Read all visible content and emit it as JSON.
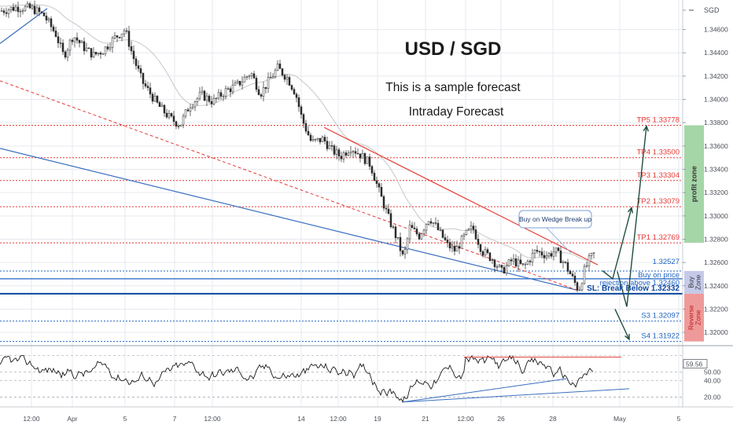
{
  "chart_data": {
    "type": "candlestick",
    "currency_label": "SGD",
    "title": "USD / SGD",
    "subtitle_1": "This is a sample forecast",
    "subtitle_2": "Intraday Forecast",
    "y_axis_ticks": [
      "1.34600",
      "1.34400",
      "1.34200",
      "1.34000",
      "1.33800",
      "1.33600",
      "1.33400",
      "1.33200",
      "1.33000",
      "1.32800",
      "1.32600",
      "1.32400",
      "1.32200",
      "1.32000"
    ],
    "y_range": [
      1.3194,
      1.3484
    ],
    "x_axis_ticks": [
      "12:00",
      "Apr",
      "5",
      "7",
      "12:00",
      "14",
      "12:00",
      "19",
      "21",
      "12:00",
      "26",
      "28",
      "May",
      "5"
    ],
    "current_price_tag": "1.32527",
    "levels": [
      {
        "label": "TP5 1.33778",
        "price": 1.33778,
        "color": "#e53935"
      },
      {
        "label": "TP4 1.33500",
        "price": 1.335,
        "color": "#e53935"
      },
      {
        "label": "TP3 1.33304",
        "price": 1.33304,
        "color": "#e53935"
      },
      {
        "label": "TP2 1.33079",
        "price": 1.33079,
        "color": "#e53935"
      },
      {
        "label": "TP1 1.32769",
        "price": 1.32769,
        "color": "#e53935"
      },
      {
        "label": "1.32527",
        "price": 1.32527,
        "color": "#1e63c4"
      },
      {
        "label": "Buy on price",
        "price": 1.32527,
        "color": "#1e63c4"
      },
      {
        "label": "rejection above 1.32460",
        "price": 1.3246,
        "color": "#1e63c4"
      },
      {
        "label": "SL: Break Below 1.32332",
        "price": 1.32332,
        "color": "#0d47a1"
      },
      {
        "label": "S3 1.32097",
        "price": 1.32097,
        "color": "#1e63c4"
      },
      {
        "label": "S4 1.31922",
        "price": 1.31922,
        "color": "#1e63c4"
      }
    ],
    "zones": [
      {
        "label": "profit zone",
        "color": "#a5d6a7"
      },
      {
        "label": "Buy Zone",
        "color": "#c5cae9"
      },
      {
        "label": "Reverse Zone",
        "color": "#ef9a9a"
      }
    ],
    "callout": "Buy on Wedge Break up",
    "rsi": {
      "ticks": [
        "59.56",
        "50.00",
        "40.00",
        "20.00"
      ],
      "y_range": [
        10,
        80
      ]
    },
    "colors": {
      "grid": "#e6e9ef",
      "candle": "#2b2b2b",
      "tp": "#e53935",
      "support": "#1e63c4",
      "trend_blue": "#3a6fbf",
      "arrow": "#1f4e3d"
    }
  }
}
